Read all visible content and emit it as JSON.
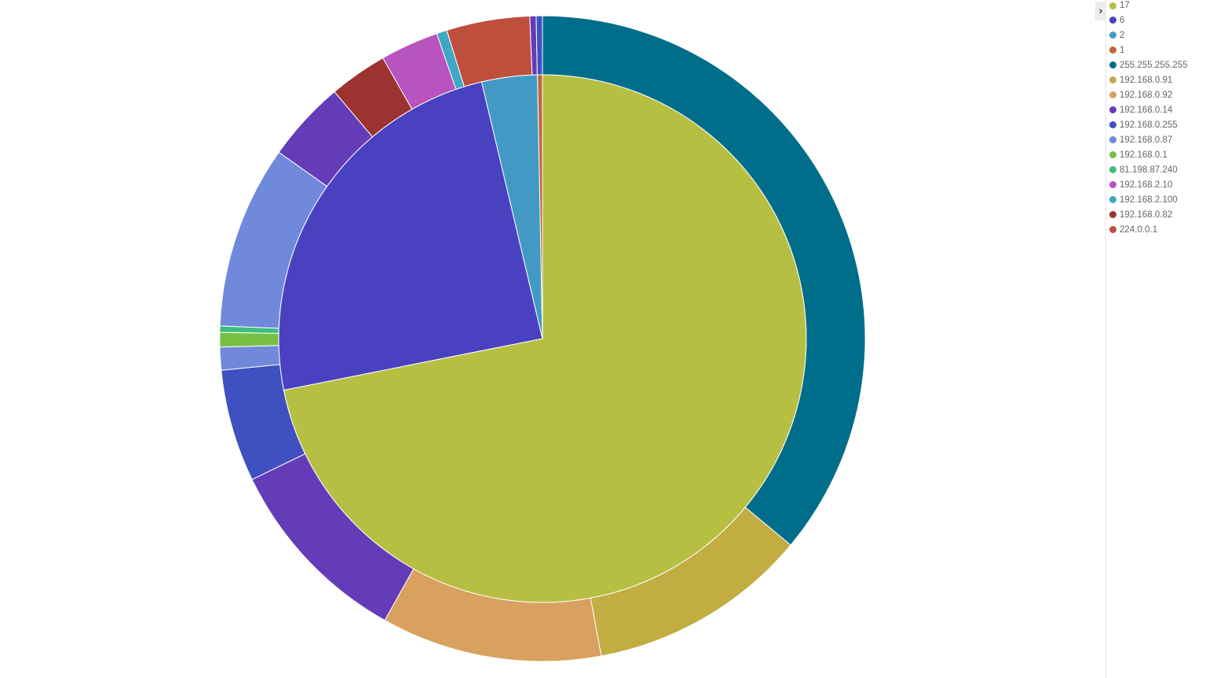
{
  "chart_data": {
    "type": "pie",
    "variant": "nested-donut",
    "title": "",
    "inner_ring": [
      {
        "label": "17",
        "value": 71.8,
        "color": "#b7bf42"
      },
      {
        "label": "6",
        "value": 24.4,
        "color": "#4a41c1"
      },
      {
        "label": "2",
        "value": 3.4,
        "color": "#429ac4"
      },
      {
        "label": "1",
        "value": 0.3,
        "color": "#c0663d"
      }
    ],
    "outer_ring": [
      {
        "label": "255.255.255.255",
        "value": 34.6,
        "color": "#006e8a"
      },
      {
        "label": "192.168.0.91",
        "value": 10.6,
        "color": "#c1ad42"
      },
      {
        "label": "192.168.0.92",
        "value": 10.6,
        "color": "#d9a15f"
      },
      {
        "label": "192.168.0.14",
        "value": 9.3,
        "color": "#643cb8"
      },
      {
        "label": "192.168.0.255",
        "value": 5.4,
        "color": "#3f50c0"
      },
      {
        "label": "192.168.0.87",
        "value": 1.1,
        "color": "#7189da"
      },
      {
        "label": "192.168.0.1",
        "value": 0.7,
        "color": "#76c143"
      },
      {
        "label": "81.198.87.240",
        "value": 0.3,
        "color": "#3fbd7e"
      },
      {
        "label": "192.168.0.87",
        "value": 8.8,
        "color": "#7189da"
      },
      {
        "label": "192.168.0.14",
        "value": 3.9,
        "color": "#643cb8"
      },
      {
        "label": "192.168.0.82",
        "value": 2.8,
        "color": "#9d3331"
      },
      {
        "label": "192.168.2.10",
        "value": 2.8,
        "color": "#b854be"
      },
      {
        "label": "192.168.2.100",
        "value": 0.5,
        "color": "#3ea7c4"
      },
      {
        "label": "224.0.0.1",
        "value": 4.0,
        "color": "#bf4f3d"
      },
      {
        "label": "192.168.0.14",
        "value": 0.3,
        "color": "#643cb8"
      },
      {
        "label": "192.168.0.255",
        "value": 0.3,
        "color": "#3f50c0"
      }
    ],
    "legend_position": "right",
    "legend": [
      {
        "label": "17",
        "color": "#b7bf42"
      },
      {
        "label": "6",
        "color": "#4a41c1"
      },
      {
        "label": "2",
        "color": "#429ac4"
      },
      {
        "label": "1",
        "color": "#c0663d"
      },
      {
        "label": "255.255.255.255",
        "color": "#006e8a"
      },
      {
        "label": "192.168.0.91",
        "color": "#c1ad42"
      },
      {
        "label": "192.168.0.92",
        "color": "#d9a15f"
      },
      {
        "label": "192.168.0.14",
        "color": "#643cb8"
      },
      {
        "label": "192.168.0.255",
        "color": "#3f50c0"
      },
      {
        "label": "192.168.0.87",
        "color": "#7189da"
      },
      {
        "label": "192.168.0.1",
        "color": "#76c143"
      },
      {
        "label": "81.198.87.240",
        "color": "#3fbd7e"
      },
      {
        "label": "192.168.2.10",
        "color": "#b854be"
      },
      {
        "label": "192.168.2.100",
        "color": "#3ea7c4"
      },
      {
        "label": "192.168.0.82",
        "color": "#9d3331"
      },
      {
        "label": "224.0.0.1",
        "color": "#bf4f3d"
      }
    ]
  },
  "legend_toggle": {
    "icon": "chevron-right-icon",
    "glyph": "›"
  }
}
